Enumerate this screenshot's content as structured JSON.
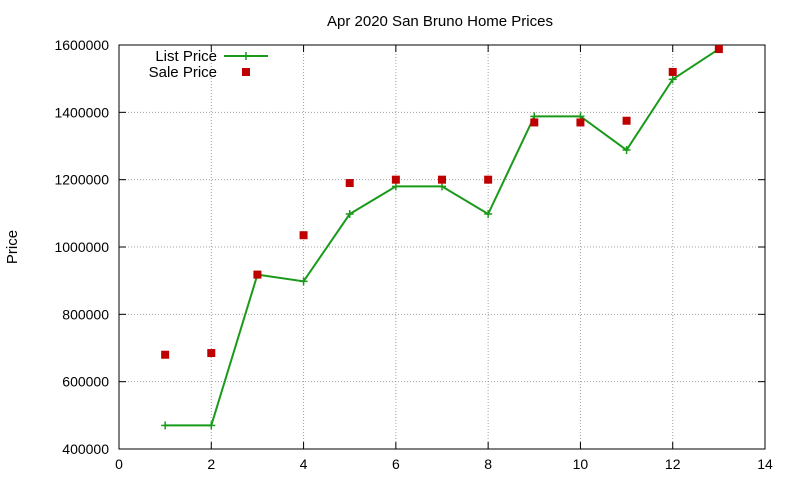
{
  "chart_data": {
    "type": "line",
    "title": "Apr 2020 San Bruno Home Prices",
    "xlabel": "",
    "ylabel": "Price",
    "xlim": [
      0,
      14
    ],
    "ylim": [
      400000,
      1600000
    ],
    "xticks": [
      0,
      2,
      4,
      6,
      8,
      10,
      12,
      14
    ],
    "yticks": [
      400000,
      600000,
      800000,
      1000000,
      1200000,
      1400000,
      1600000
    ],
    "grid": true,
    "legend_position": "top-left",
    "series": [
      {
        "name": "List Price",
        "style": "line-with-plus-markers",
        "color": "#1a9a1a",
        "x": [
          1,
          2,
          3,
          4,
          5,
          6,
          7,
          8,
          9,
          10,
          11,
          12,
          13
        ],
        "values": [
          470000,
          470000,
          918000,
          898000,
          1098000,
          1180000,
          1180000,
          1098000,
          1388000,
          1388000,
          1288000,
          1498000,
          1588000
        ]
      },
      {
        "name": "Sale Price",
        "style": "square-markers",
        "color": "#c00000",
        "x": [
          1,
          2,
          3,
          4,
          5,
          6,
          7,
          8,
          9,
          10,
          11,
          12,
          13
        ],
        "values": [
          680000,
          685000,
          918000,
          1035000,
          1190000,
          1200000,
          1200000,
          1200000,
          1370000,
          1370000,
          1375000,
          1520000,
          1588000
        ]
      }
    ]
  }
}
